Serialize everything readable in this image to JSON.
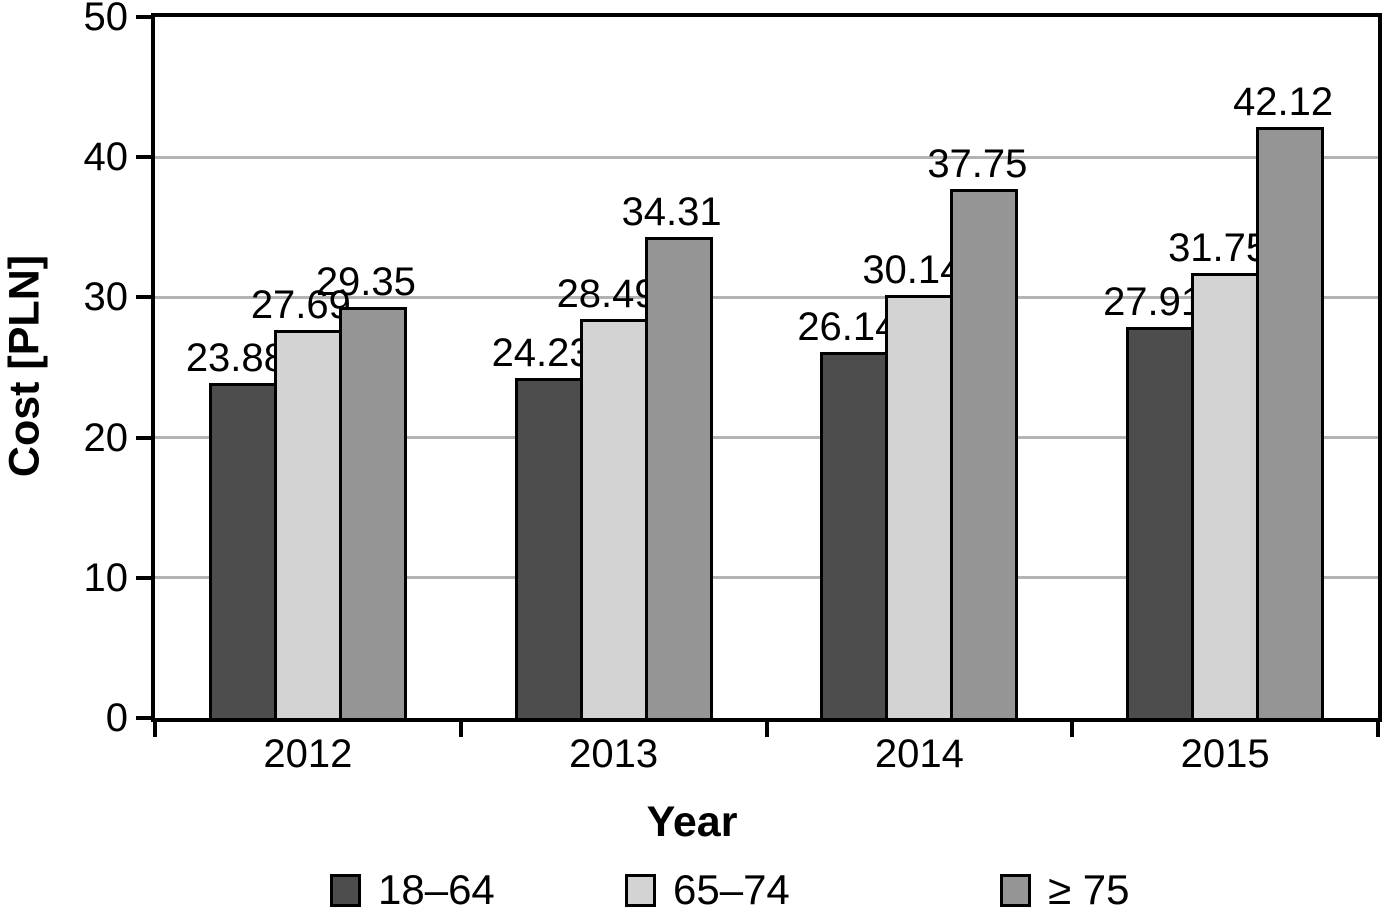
{
  "chart_data": {
    "type": "bar",
    "title": "",
    "xlabel": "Year",
    "ylabel": "Cost [PLN]",
    "categories": [
      "2012",
      "2013",
      "2014",
      "2015"
    ],
    "series": [
      {
        "name": "18–64",
        "color": "#4d4d4d",
        "values": [
          23.88,
          24.23,
          26.14,
          27.91
        ]
      },
      {
        "name": "65–74",
        "color": "#d3d3d3",
        "values": [
          27.69,
          28.49,
          30.14,
          31.75
        ]
      },
      {
        "name": "≥ 75",
        "color": "#959595",
        "values": [
          29.35,
          34.31,
          37.75,
          42.12
        ]
      }
    ],
    "ylim": [
      0,
      50
    ],
    "yticks": [
      0,
      10,
      20,
      30,
      40,
      50
    ],
    "grid": true,
    "grid_color": "#b3b3b3",
    "axis_color": "#000000",
    "bar_border_color": "#000000",
    "value_labels": true,
    "legend_position": "bottom"
  }
}
